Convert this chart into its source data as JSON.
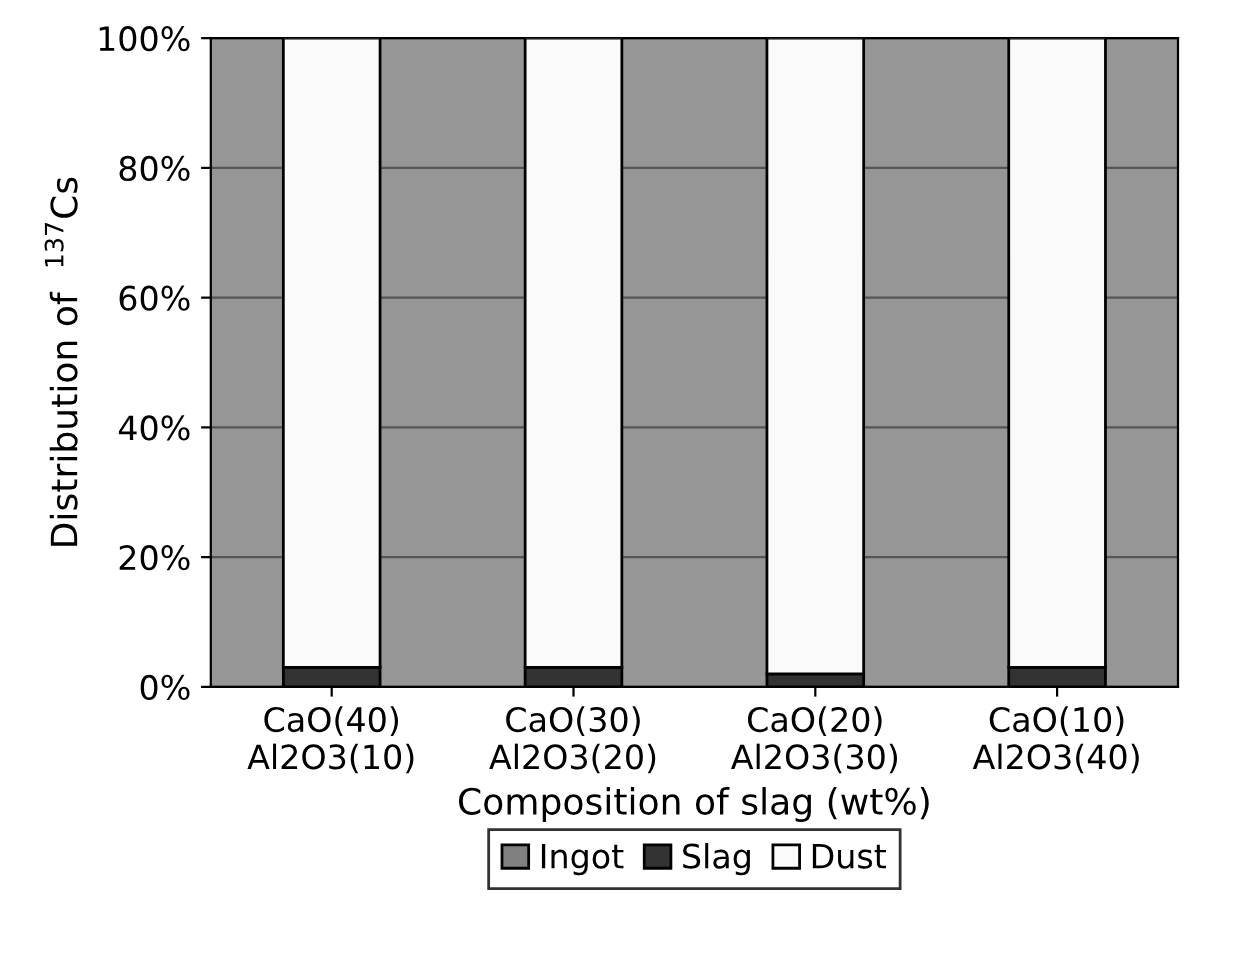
{
  "chart_data": {
    "type": "bar",
    "stacked": true,
    "xlabel": "Composition of slag (wt%)",
    "ylabel": "Distribution of  $^{137}$Cs",
    "categories": [
      "CaO(40)\nAl2O3(10)",
      "CaO(30)\nAl2O3(20)",
      "CaO(20)\nAl2O3(30)",
      "CaO(10)\nAl2O3(40)"
    ],
    "series": [
      {
        "name": "Ingot",
        "color": "#808080",
        "values": [
          0,
          0,
          0,
          0
        ]
      },
      {
        "name": "Slag",
        "color": "#333333",
        "values": [
          3,
          3,
          2,
          3
        ]
      },
      {
        "name": "Dust",
        "color": "#fafafa",
        "values": [
          97,
          97,
          98,
          97
        ]
      }
    ],
    "ylim": [
      0,
      100
    ],
    "yticks": [
      {
        "value": 0,
        "label": "0%"
      },
      {
        "value": 20,
        "label": "20%"
      },
      {
        "value": 40,
        "label": "40%"
      },
      {
        "value": 60,
        "label": "60%"
      },
      {
        "value": 80,
        "label": "80%"
      },
      {
        "value": 100,
        "label": "100%"
      }
    ],
    "grid": "y",
    "legend": "bottom"
  }
}
